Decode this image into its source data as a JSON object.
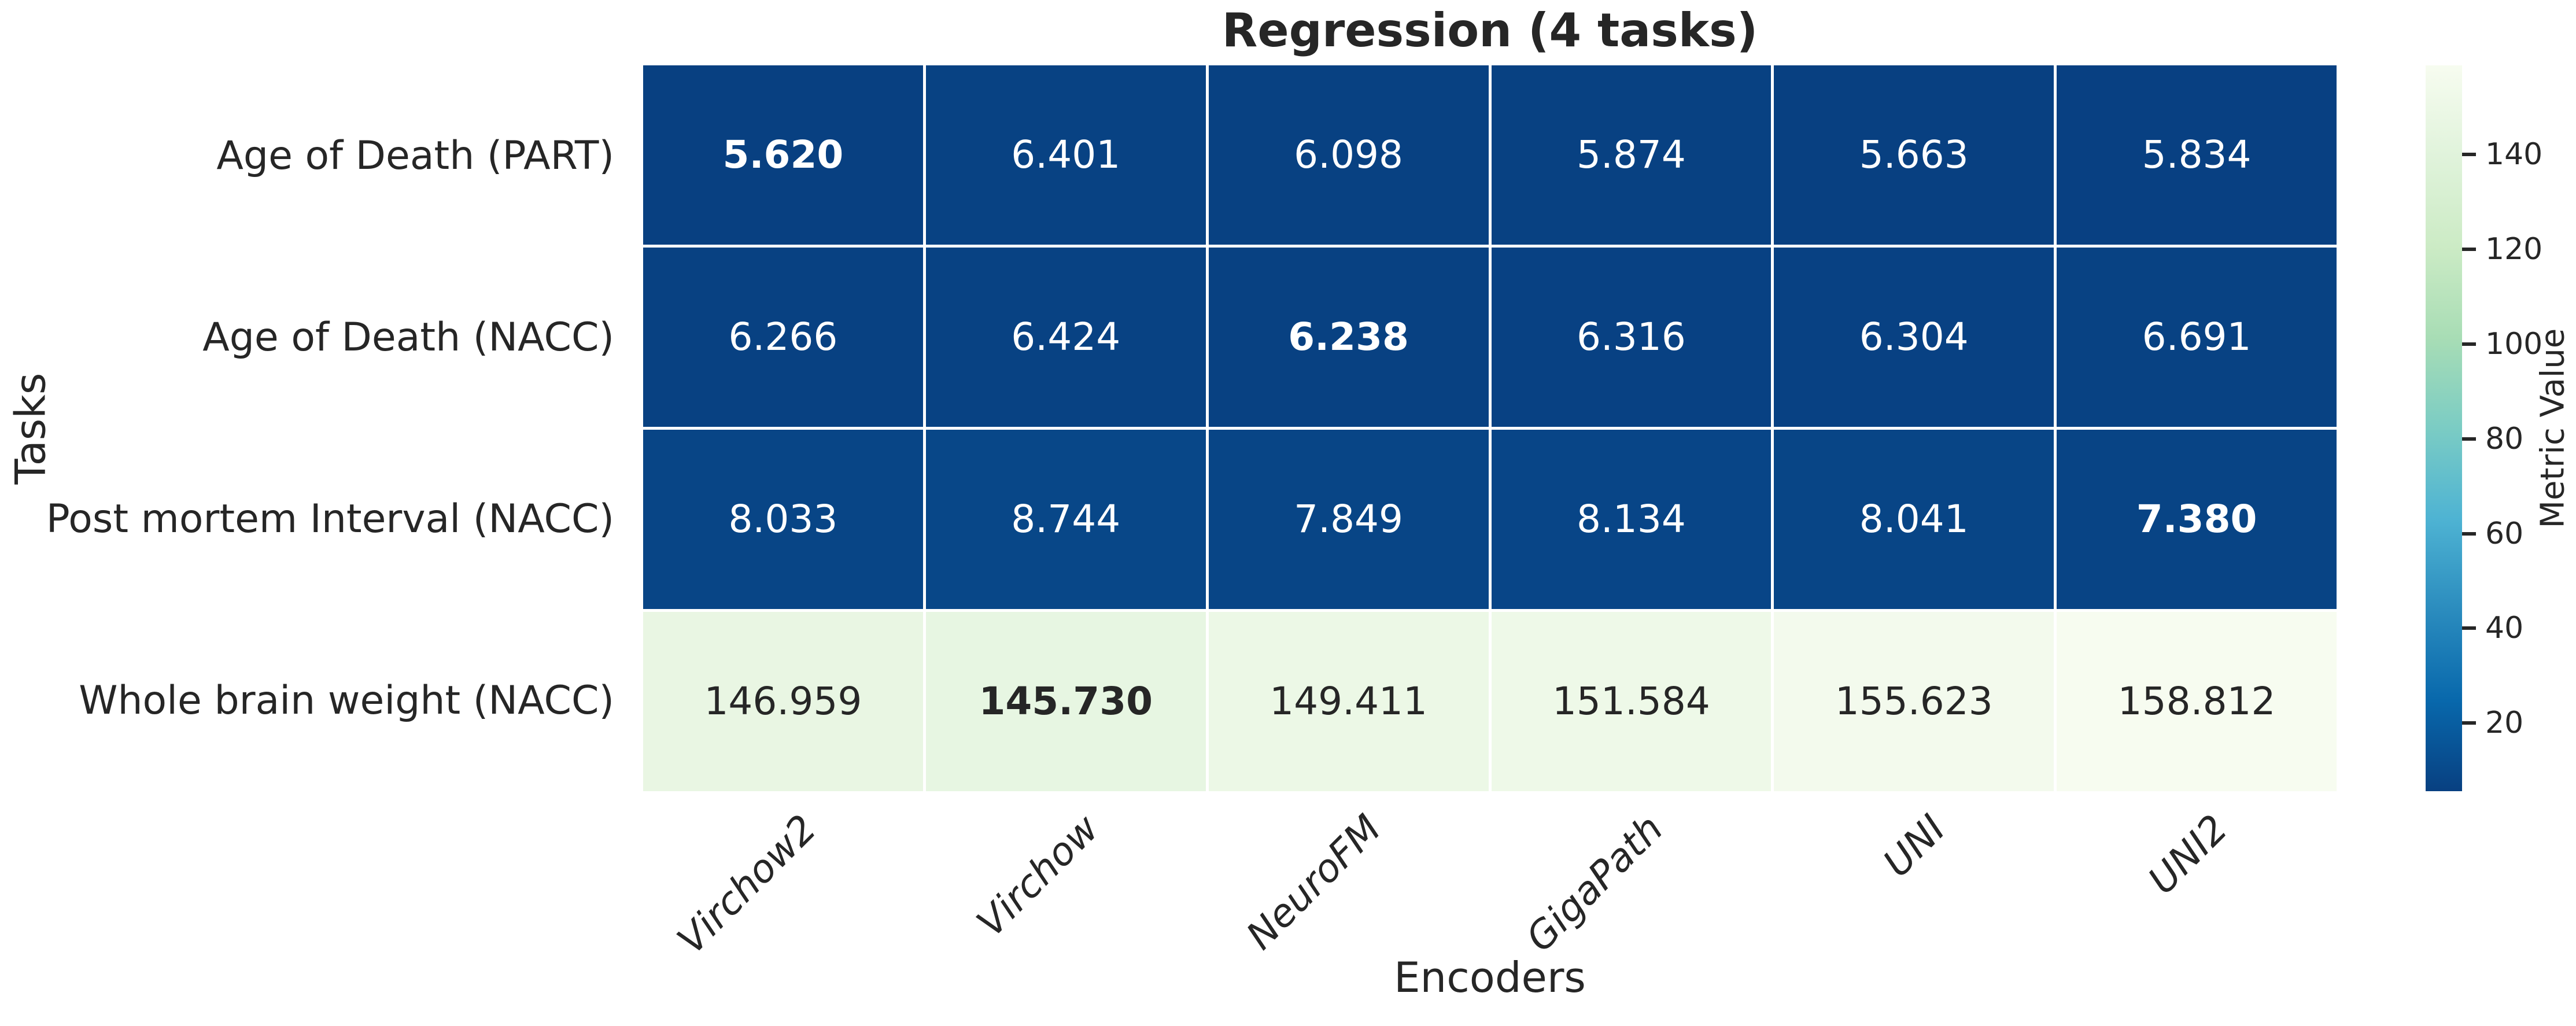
{
  "chart_data": {
    "type": "heatmap",
    "title": "Regression (4 tasks)",
    "xlabel": "Encoders",
    "ylabel": "Tasks",
    "columns": [
      "Virchow2",
      "Virchow",
      "NeuroFM",
      "GigaPath",
      "UNI",
      "UNI2"
    ],
    "rows": [
      "Age of Death (PART)",
      "Age of Death (NACC)",
      "Post mortem Interval (NACC)",
      "Whole brain weight (NACC)"
    ],
    "values": [
      [
        5.62,
        6.401,
        6.098,
        5.874,
        5.663,
        5.834
      ],
      [
        6.266,
        6.424,
        6.238,
        6.316,
        6.304,
        6.691
      ],
      [
        8.033,
        8.744,
        7.849,
        8.134,
        8.041,
        7.38
      ],
      [
        146.959,
        145.73,
        149.411,
        151.584,
        155.623,
        158.812
      ]
    ],
    "value_decimals": 3,
    "bold_cells": [
      [
        0,
        0
      ],
      [
        1,
        2
      ],
      [
        2,
        5
      ],
      [
        3,
        1
      ]
    ],
    "cell_colors": [
      [
        "#084081",
        "#084283",
        "#084182",
        "#084182",
        "#084081",
        "#084082"
      ],
      [
        "#084182",
        "#084283",
        "#084182",
        "#084183",
        "#084183",
        "#084283"
      ],
      [
        "#084586",
        "#084788",
        "#084586",
        "#084587",
        "#084586",
        "#084485"
      ],
      [
        "#e9f6e3",
        "#e7f6e2",
        "#ecf8e6",
        "#eef9e8",
        "#f3faed",
        "#f7fcf0"
      ]
    ],
    "row_text_colors": [
      "#ffffff",
      "#ffffff",
      "#ffffff",
      "#262626"
    ],
    "grid_line_color": "#ffffff",
    "text_color": "#262626",
    "background": "#ffffff",
    "legend_position": "right-colorbar",
    "grid": "white cell separators",
    "colorbar": {
      "label": "Metric Value",
      "ticks": [
        20,
        40,
        60,
        80,
        100,
        120,
        140
      ],
      "vmin": 5.62,
      "vmax": 158.812,
      "colormap": "GnBu reversed (low=dark blue, high=light green)",
      "gradient_top_to_bottom": [
        "#f7fcf0",
        "#e0f3db",
        "#ccebc5",
        "#a8ddb5",
        "#7bccc4",
        "#4eb3d3",
        "#2b8cbe",
        "#0868ac",
        "#084081"
      ]
    }
  }
}
